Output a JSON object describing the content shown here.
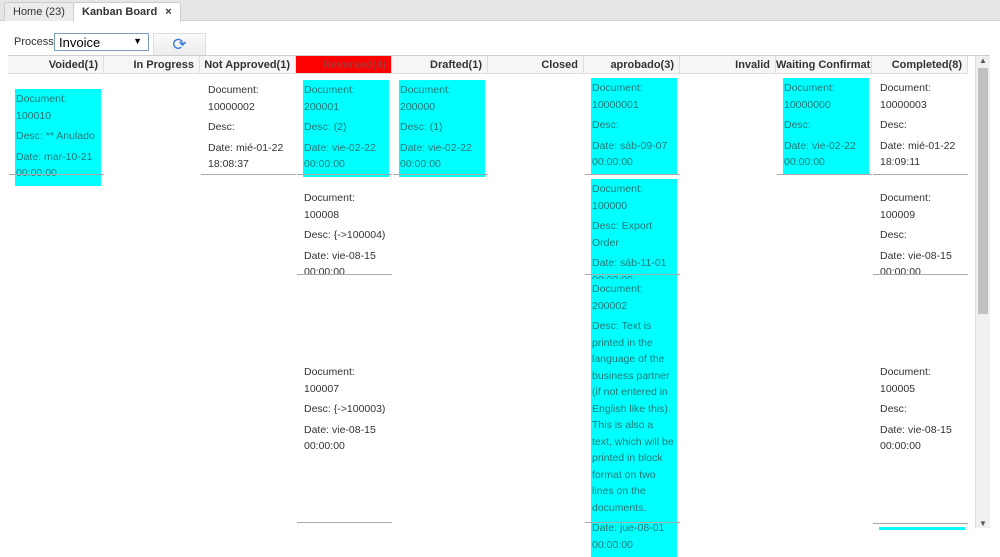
{
  "tabs": [
    {
      "label": "Home (23)",
      "active": false
    },
    {
      "label": "Kanban Board",
      "active": true,
      "close": "×"
    }
  ],
  "toolbar": {
    "process_label": "Process",
    "process_value": "Invoice",
    "refresh_icon": "refresh-icon"
  },
  "columns": [
    {
      "title": "Voided(1)",
      "highlight": false,
      "cards": [
        {
          "doc": "Document: 100010",
          "desc": "Desc: ** Anulado",
          "date": "Date: mar-10-21 00:00:00",
          "cyan": true
        }
      ]
    },
    {
      "title": "In Progress",
      "highlight": false,
      "cards": []
    },
    {
      "title": "Not Approved(1)",
      "highlight": false,
      "cards": [
        {
          "doc": "Document: 10000002",
          "desc": "Desc:",
          "date": "Date: mié-01-22 18:08:37",
          "cyan": false
        }
      ]
    },
    {
      "title": "Reversed(4)",
      "highlight": true,
      "cards": [
        {
          "doc": "Document: 200001",
          "desc": "Desc: (2)",
          "date": "Date: vie-02-22 00:00:00",
          "cyan": true
        },
        {
          "doc": "Document: 100008",
          "desc": "Desc: {->100004)",
          "date": "Date: vie-08-15 00:00:00",
          "cyan": false
        },
        {
          "doc": "Document: 100007",
          "desc": "Desc: {->100003)",
          "date": "Date: vie-08-15 00:00:00",
          "cyan": false
        }
      ]
    },
    {
      "title": "Drafted(1)",
      "highlight": false,
      "cards": [
        {
          "doc": "Document: 200000",
          "desc": "Desc: (1)",
          "date": "Date: vie-02-22 00:00:00",
          "cyan": true
        }
      ]
    },
    {
      "title": "Closed",
      "highlight": false,
      "cards": []
    },
    {
      "title": "aprobado(3)",
      "highlight": false,
      "cards": [
        {
          "doc": "Document: 10000001",
          "desc": "Desc:",
          "date": "Date: sáb-09-07 00:00:00",
          "cyan": true
        },
        {
          "doc": "Document: 100000",
          "desc": "Desc: Export Order",
          "date": "Date: sáb-11-01 00:00:00",
          "cyan": true
        },
        {
          "doc": "Document: 200002",
          "desc": "Desc: Text is printed in the language of the business partner (if not entered in English like this). This is also a text, which will be printed in block format on two lines on the documents.",
          "date": "Date: jue-08-01 00:00:00",
          "cyan": true
        }
      ]
    },
    {
      "title": "Invalid",
      "highlight": false,
      "cards": []
    },
    {
      "title": "Waiting Confirmation",
      "highlight": false,
      "cards": [
        {
          "doc": "Document: 10000000",
          "desc": "Desc:",
          "date": "Date: vie-02-22 00:00:00",
          "cyan": true
        }
      ]
    },
    {
      "title": "Completed(8)",
      "highlight": false,
      "cards": [
        {
          "doc": "Document: 10000003",
          "desc": "Desc:",
          "date": "Date: mié-01-22 18:09:11",
          "cyan": false
        },
        {
          "doc": "Document: 100009",
          "desc": "Desc:",
          "date": "Date: vie-08-15 00:00:00",
          "cyan": false
        },
        {
          "doc": "Document: 100005",
          "desc": "Desc:",
          "date": "Date: vie-08-15 00:00:00",
          "cyan": false
        }
      ]
    }
  ],
  "colors": {
    "card_highlight": "#00ffff",
    "header_highlight": "#ff0000"
  }
}
